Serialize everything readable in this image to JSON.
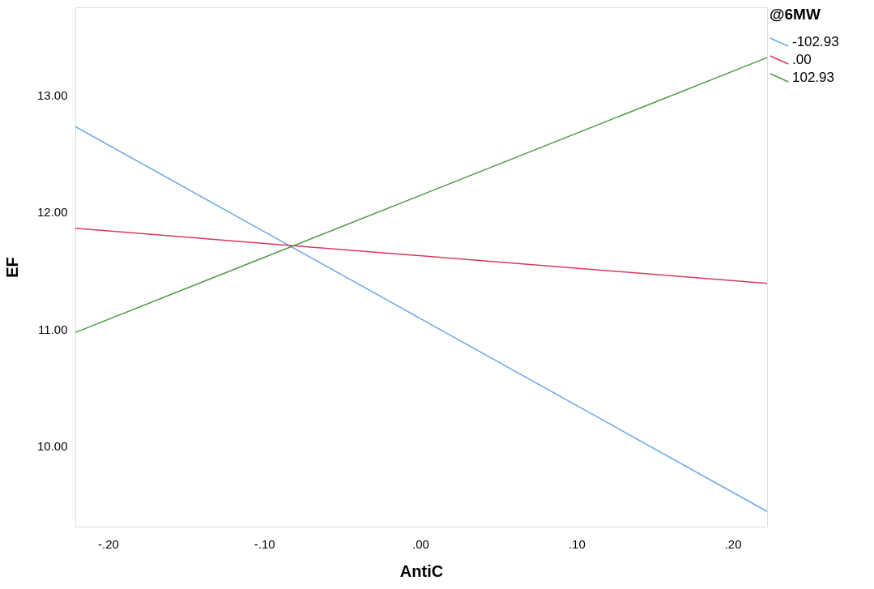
{
  "chart_data": {
    "type": "line",
    "xlabel": "AntiC",
    "ylabel": "EF",
    "legend_title": "@6MW",
    "legend": "top right",
    "grid": false,
    "marker": "none",
    "line_style": "solid",
    "xlim": [
      -0.221,
      0.222
    ],
    "ylim": [
      9.31,
      13.75
    ],
    "xticks": [
      {
        "value": -0.2,
        "label": "-.20"
      },
      {
        "value": -0.1,
        "label": "-.10"
      },
      {
        "value": 0,
        "label": ".00"
      },
      {
        "value": 0.1,
        "label": ".10"
      },
      {
        "value": 0.2,
        "label": ".20"
      }
    ],
    "yticks": [
      {
        "value": 10,
        "label": "10.00"
      },
      {
        "value": 11,
        "label": "11.00"
      },
      {
        "value": 12,
        "label": "12.00"
      },
      {
        "value": 13,
        "label": "13.00"
      }
    ],
    "x": [
      -0.221,
      0.222
    ],
    "series": [
      {
        "name": "-102.93",
        "color": "#6fa8e8",
        "values": [
          12.73,
          9.44
        ]
      },
      {
        "name": ".00",
        "color": "#d9385e",
        "values": [
          11.86,
          11.39
        ]
      },
      {
        "name": "102.93",
        "color": "#4e9a45",
        "values": [
          10.97,
          13.32
        ]
      }
    ]
  }
}
